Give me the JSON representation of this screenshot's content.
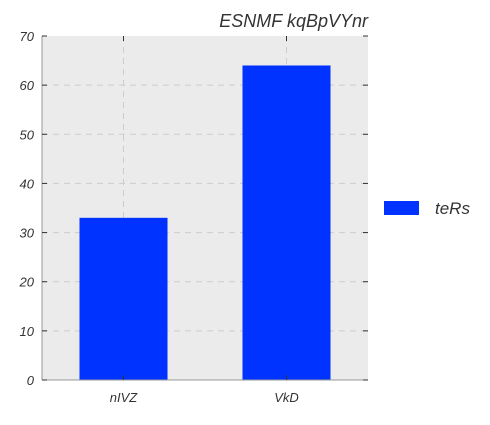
{
  "chart_data": {
    "type": "bar",
    "title": "ESNMF kqBpVYnr",
    "xlabel": "",
    "ylabel": "",
    "categories": [
      "nIVZ",
      "VkD"
    ],
    "series": [
      {
        "name": "teRs",
        "values": [
          33,
          64
        ],
        "color": "#0033ff"
      }
    ],
    "ylim": [
      0,
      70
    ],
    "yticks": [
      0,
      10,
      20,
      30,
      40,
      50,
      60,
      70
    ],
    "grid": true,
    "legend_position": "right",
    "colors": {
      "plot_background": "#ebebeb",
      "grid": "#cccccc"
    }
  }
}
